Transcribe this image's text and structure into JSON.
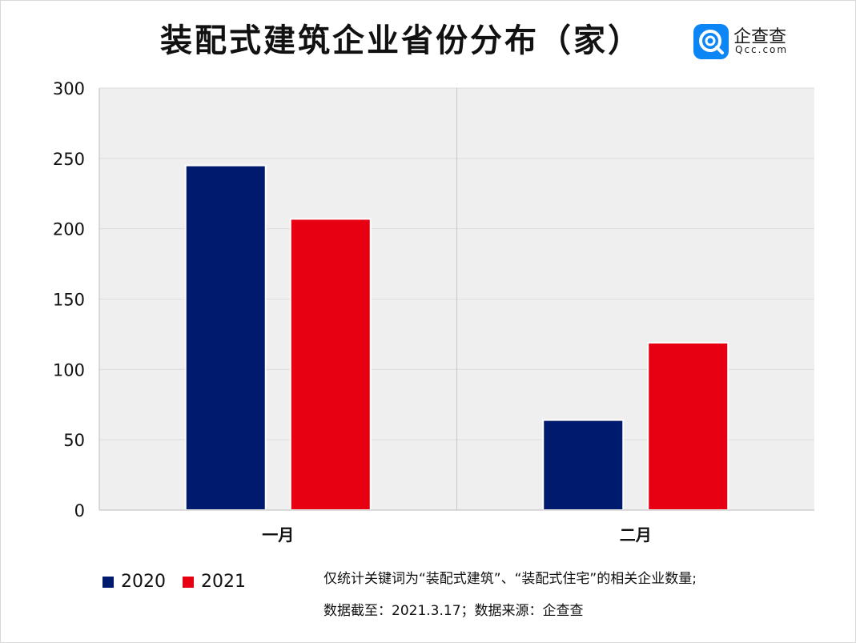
{
  "title": "装配式建筑企业省份分布（家）",
  "logo": {
    "name": "企查查",
    "domain": "Qcc.com",
    "icon": "qcc-logo-icon"
  },
  "colors": {
    "s2020": "#001a6e",
    "s2021": "#e60012",
    "plot_bg": "#efefef",
    "grid": "#dcdcdc"
  },
  "chart_data": {
    "type": "bar",
    "categories": [
      "一月",
      "二月"
    ],
    "series": [
      {
        "name": "2020",
        "values": [
          245,
          64
        ]
      },
      {
        "name": "2021",
        "values": [
          207,
          119
        ]
      }
    ],
    "ylim": [
      0,
      300
    ],
    "yticks": [
      "0",
      "50",
      "100",
      "150",
      "200",
      "250",
      "300"
    ],
    "grid": true,
    "legend_position": "bottom-left"
  },
  "notes": {
    "line1": "仅统计关键词为“装配式建筑”、“装配式住宅”的相关企业数量;",
    "line2": "数据截至：2021.3.17；数据来源：企查查"
  }
}
